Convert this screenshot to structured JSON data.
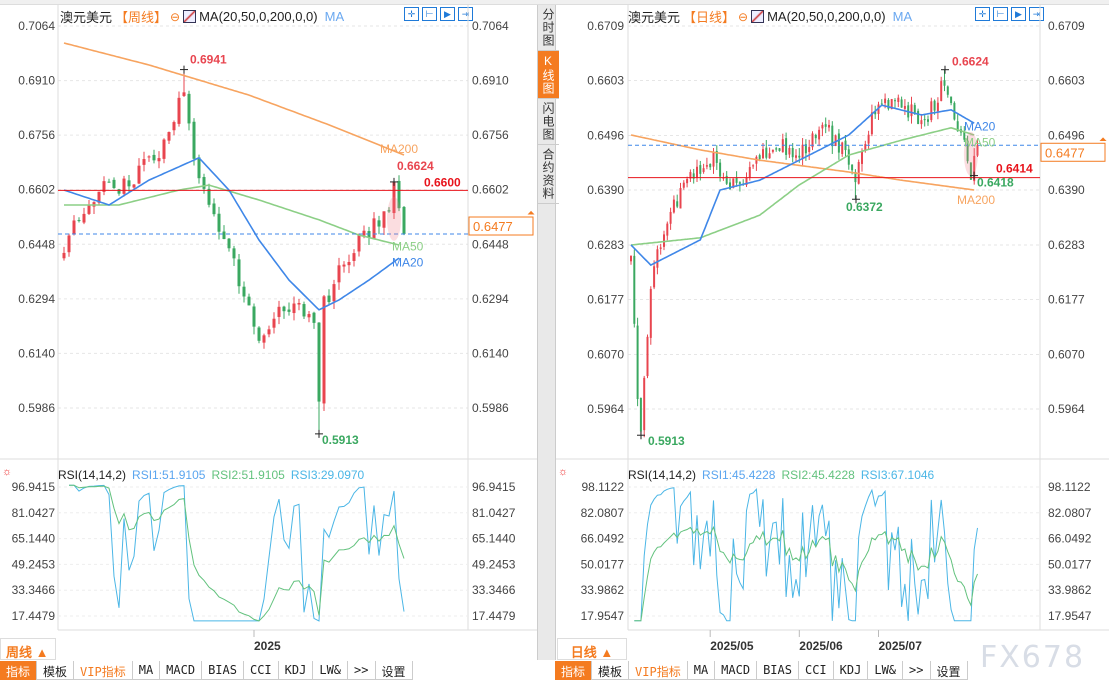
{
  "sidebar": {
    "tabs": [
      "分时图",
      "K线图",
      "闪电图",
      "合约资料"
    ],
    "active": 1
  },
  "tabs": [
    "指标",
    "模板",
    "VIP指标",
    "MA",
    "MACD",
    "BIAS",
    "CCI",
    "KDJ",
    "LW&",
    ">>",
    "设置"
  ],
  "watermark": "FX678",
  "colors": {
    "up": "#e8454f",
    "down": "#3aa860",
    "ma20": "#3f87e8",
    "ma50": "#8ccf86",
    "ma200": "#f7a460",
    "accent": "#f47b20",
    "red_line": "#e8141c",
    "dash": "#3f87e8",
    "rsi1": "#5aa5ef",
    "rsi2": "#63c27e",
    "rsi3": "#4bb6e6"
  },
  "left": {
    "symbol": "澳元美元",
    "period": "【周线】",
    "ma_label": "MA(20,50,0,200,0,0)",
    "ma_tag": "MA",
    "period_button": "周线 ▲",
    "price_range": [
      0.5986,
      0.7064
    ],
    "yticks": [
      "0.7064",
      "0.6910",
      "0.6756",
      "0.6602",
      "0.6448",
      "0.6294",
      "0.6140",
      "0.5986"
    ],
    "high_label": "0.6941",
    "low_label": "0.5913",
    "recent_high_label": "0.6624",
    "level_label": "0.6600",
    "level": 0.66,
    "current": "0.6477",
    "current_value": 0.6477,
    "ma_labels": {
      "ma200": "MA200",
      "ma50": "MA50",
      "ma20": "MA20"
    },
    "candle_count": 69,
    "close_keypoints": [
      [
        0,
        0.645
      ],
      [
        3,
        0.652
      ],
      [
        7,
        0.66
      ],
      [
        13,
        0.662
      ],
      [
        17,
        0.668
      ],
      [
        21,
        0.675
      ],
      [
        24,
        0.69
      ],
      [
        26,
        0.67
      ],
      [
        29,
        0.655
      ],
      [
        33,
        0.645
      ],
      [
        37,
        0.626
      ],
      [
        40,
        0.617
      ],
      [
        43,
        0.625
      ],
      [
        47,
        0.63
      ],
      [
        50,
        0.62
      ],
      [
        51,
        0.6
      ],
      [
        52,
        0.628
      ],
      [
        56,
        0.64
      ],
      [
        61,
        0.648
      ],
      [
        65,
        0.656
      ],
      [
        66,
        0.66
      ],
      [
        68,
        0.6477
      ]
    ],
    "extremes": [
      [
        24,
        "high",
        0.6941
      ],
      [
        51,
        "low",
        0.5913
      ],
      [
        66,
        "high",
        0.6624
      ]
    ],
    "ma200": [
      [
        0,
        0.7016
      ],
      [
        17,
        0.6954
      ],
      [
        37,
        0.6869
      ],
      [
        53,
        0.6785
      ],
      [
        68,
        0.67
      ]
    ],
    "ma20": [
      [
        0,
        0.6601
      ],
      [
        9,
        0.6559
      ],
      [
        17,
        0.6629
      ],
      [
        27,
        0.6692
      ],
      [
        33,
        0.6601
      ],
      [
        39,
        0.646
      ],
      [
        45,
        0.6347
      ],
      [
        51,
        0.6263
      ],
      [
        55,
        0.6291
      ],
      [
        61,
        0.6347
      ],
      [
        67,
        0.6409
      ]
    ],
    "ma50": [
      [
        0,
        0.6559
      ],
      [
        11,
        0.6559
      ],
      [
        23,
        0.6601
      ],
      [
        29,
        0.6615
      ],
      [
        39,
        0.6573
      ],
      [
        51,
        0.6517
      ],
      [
        59,
        0.6474
      ],
      [
        67,
        0.6446
      ]
    ],
    "rsi": {
      "title": "RSI(14,14,2)",
      "rsi1": "RSI1:51.9105",
      "rsi2": "RSI2:51.9105",
      "rsi3": "RSI3:29.0970",
      "range": [
        17.4479,
        96.9415
      ],
      "yticks": [
        "96.9415",
        "81.0427",
        "65.1440",
        "49.2453",
        "33.3466",
        "17.4479"
      ]
    },
    "x_labels": [
      [
        38,
        "2025"
      ]
    ]
  },
  "right": {
    "symbol": "澳元美元",
    "period": "【日线】",
    "ma_label": "MA(20,50,0,200,0,0)",
    "ma_tag": "MA",
    "period_button": "日线 ▲",
    "price_range": [
      0.5964,
      0.6709
    ],
    "yticks": [
      "0.6709",
      "0.6603",
      "0.6496",
      "0.6390",
      "0.6283",
      "0.6177",
      "0.6070",
      "0.5964"
    ],
    "high_label": "0.6624",
    "low_label": "0.5913",
    "mid_low_label": "0.6372",
    "level_label": "0.6414",
    "level": 0.6414,
    "recent_low_label": "0.6418",
    "current": "0.6477",
    "current_value": 0.6477,
    "ma_labels": {
      "ma200": "MA200",
      "ma50": "MA50",
      "ma20": "MA20"
    },
    "candle_count": 106,
    "close_keypoints": [
      [
        0,
        0.628
      ],
      [
        2,
        0.6
      ],
      [
        3,
        0.5935
      ],
      [
        5,
        0.612
      ],
      [
        7,
        0.625
      ],
      [
        12,
        0.635
      ],
      [
        18,
        0.641
      ],
      [
        25,
        0.645
      ],
      [
        31,
        0.64
      ],
      [
        39,
        0.645
      ],
      [
        45,
        0.648
      ],
      [
        51,
        0.645
      ],
      [
        57,
        0.652
      ],
      [
        63,
        0.648
      ],
      [
        68,
        0.641
      ],
      [
        74,
        0.655
      ],
      [
        82,
        0.656
      ],
      [
        89,
        0.652
      ],
      [
        95,
        0.66
      ],
      [
        99,
        0.652
      ],
      [
        103,
        0.642
      ],
      [
        105,
        0.6477
      ]
    ],
    "extremes": [
      [
        95,
        "high",
        0.6624
      ],
      [
        3,
        "low",
        0.5913
      ],
      [
        68,
        "low",
        0.6372
      ],
      [
        103,
        "low",
        0.6418
      ]
    ],
    "ma20": [
      [
        0,
        0.6283
      ],
      [
        6,
        0.6244
      ],
      [
        21,
        0.6293
      ],
      [
        27,
        0.639
      ],
      [
        39,
        0.6409
      ],
      [
        51,
        0.6448
      ],
      [
        66,
        0.6497
      ],
      [
        76,
        0.6555
      ],
      [
        88,
        0.6536
      ],
      [
        97,
        0.6546
      ],
      [
        104,
        0.652
      ]
    ],
    "ma50": [
      [
        0,
        0.6283
      ],
      [
        21,
        0.6297
      ],
      [
        39,
        0.6341
      ],
      [
        51,
        0.64
      ],
      [
        66,
        0.6458
      ],
      [
        82,
        0.6487
      ],
      [
        97,
        0.6511
      ],
      [
        104,
        0.6497
      ]
    ],
    "ma200": [
      [
        0,
        0.6497
      ],
      [
        21,
        0.6468
      ],
      [
        39,
        0.6448
      ],
      [
        66,
        0.6425
      ],
      [
        82,
        0.6409
      ],
      [
        104,
        0.639
      ]
    ],
    "rsi": {
      "title": "RSI(14,14,2)",
      "rsi1": "RSI1:45.4228",
      "rsi2": "RSI2:45.4228",
      "rsi3": "RSI3:67.1046",
      "range": [
        17.9547,
        98.1122
      ],
      "yticks": [
        "98.1122",
        "82.0807",
        "66.0492",
        "50.0177",
        "33.9862",
        "17.9547"
      ]
    },
    "x_labels": [
      [
        24,
        "2025/05"
      ],
      [
        51,
        "2025/06"
      ],
      [
        75,
        "2025/07"
      ]
    ]
  }
}
